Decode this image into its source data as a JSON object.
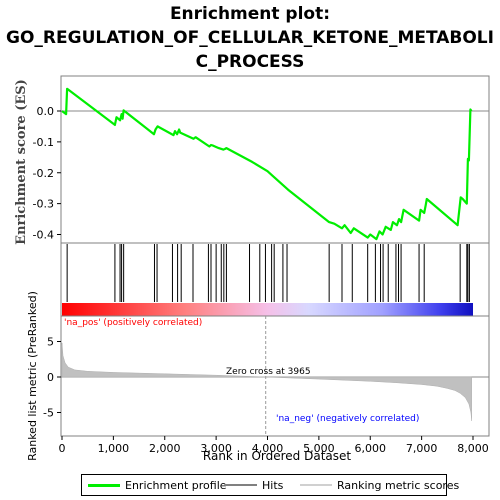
{
  "title": {
    "line1": "Enrichment plot:",
    "line2": "GO_REGULATION_OF_CELLULAR_KETONE_METABOLI",
    "line3": "C_PROCESS"
  },
  "legend": {
    "enrichment_profile": "Enrichment profile",
    "hits": "Hits",
    "ranking_metric_scores": "Ranking metric scores"
  },
  "colors": {
    "enrichment_line": "#00ee00",
    "hits": "#000000",
    "metric_fill": "#c0c0c0",
    "pos_label": "#ff0000",
    "neg_label": "#0000ff"
  },
  "chart_data": [
    {
      "type": "line",
      "name": "enrichment-score-plot",
      "ylabel": "Enrichment score (ES)",
      "xlim": [
        0,
        8200
      ],
      "ylim": [
        -0.445,
        0.095
      ],
      "yticks": [
        0.0,
        -0.1,
        -0.2,
        -0.3,
        -0.4
      ],
      "ytick_labels": [
        "0.0",
        "-0.1",
        "-0.2",
        "-0.3",
        "-0.4"
      ],
      "grid": false,
      "series": [
        {
          "x": [
            0,
            80,
            100,
            1030,
            1060,
            1130,
            1160,
            1180,
            1200,
            1790,
            1820,
            1840,
            1860,
            2170,
            2200,
            2240,
            2280,
            2300,
            2560,
            2600,
            2870,
            2900,
            2940,
            3050,
            3140,
            3170,
            3200,
            3700,
            4000,
            4100,
            4400,
            5200,
            5300,
            5450,
            5500,
            5620,
            5680,
            5950,
            6000,
            6120,
            6180,
            6240,
            6300,
            6400,
            6440,
            6520,
            6560,
            6600,
            6650,
            6950,
            6980,
            7050,
            7080,
            7100,
            7700,
            7760,
            7800,
            7880,
            7900,
            7920,
            7950,
            7970
          ],
          "values": [
            0.0,
            -0.01,
            0.072,
            -0.045,
            -0.02,
            -0.03,
            -0.01,
            -0.025,
            0.002,
            -0.075,
            -0.06,
            -0.055,
            -0.05,
            -0.078,
            -0.065,
            -0.075,
            -0.06,
            -0.07,
            -0.09,
            -0.085,
            -0.115,
            -0.11,
            -0.112,
            -0.12,
            -0.125,
            -0.123,
            -0.12,
            -0.165,
            -0.195,
            -0.21,
            -0.255,
            -0.36,
            -0.365,
            -0.38,
            -0.37,
            -0.395,
            -0.38,
            -0.41,
            -0.4,
            -0.415,
            -0.39,
            -0.4,
            -0.375,
            -0.385,
            -0.36,
            -0.37,
            -0.35,
            -0.36,
            -0.32,
            -0.355,
            -0.32,
            -0.33,
            -0.305,
            -0.285,
            -0.37,
            -0.28,
            -0.285,
            -0.3,
            -0.155,
            -0.16,
            0.005,
            0.0
          ]
        }
      ]
    },
    {
      "type": "scatter",
      "name": "hits-strip",
      "xlim": [
        0,
        8200
      ],
      "series": [
        {
          "name": "Hits",
          "x": [
            100,
            1030,
            1130,
            1160,
            1200,
            1800,
            1850,
            2150,
            2250,
            2320,
            2550,
            2850,
            2900,
            3000,
            3100,
            3150,
            3200,
            3650,
            3850,
            3960,
            4080,
            4130,
            4300,
            4380,
            5200,
            5450,
            5650,
            5950,
            6100,
            6200,
            6250,
            6350,
            6500,
            6550,
            6600,
            6950,
            7050,
            7750,
            7880,
            7900,
            7930
          ]
        }
      ]
    },
    {
      "type": "area",
      "name": "ranked-list-metric-plot",
      "xlabel": "Rank in Ordered Dataset",
      "ylabel": "Ranked list metric (PreRanked)",
      "xlim": [
        0,
        8200
      ],
      "ylim": [
        -6.5,
        6.5
      ],
      "xticks": [
        0,
        1000,
        2000,
        3000,
        4000,
        5000,
        6000,
        7000,
        8000
      ],
      "xtick_labels": [
        "0",
        "1,000",
        "2,000",
        "3,000",
        "4,000",
        "5,000",
        "6,000",
        "7,000",
        "8,000"
      ],
      "yticks": [
        5,
        0,
        -5
      ],
      "ytick_labels": [
        "5",
        "0",
        "-5"
      ],
      "x": [
        0,
        20,
        60,
        120,
        250,
        500,
        1000,
        1500,
        2000,
        2500,
        3000,
        3500,
        3965,
        4500,
        5000,
        5500,
        6000,
        6500,
        7000,
        7300,
        7500,
        7650,
        7750,
        7850,
        7920,
        7960,
        7975
      ],
      "values": [
        4.8,
        3.0,
        2.0,
        1.4,
        1.0,
        0.8,
        0.65,
        0.55,
        0.45,
        0.35,
        0.25,
        0.12,
        0.0,
        -0.15,
        -0.3,
        -0.45,
        -0.6,
        -0.8,
        -1.05,
        -1.3,
        -1.6,
        -1.9,
        -2.3,
        -2.9,
        -3.8,
        -5.0,
        -6.2
      ],
      "zero_cross_label": "Zero cross at 3965",
      "zero_cross_x": 3965,
      "pos_label": "'na_pos' (positively correlated)",
      "neg_label": "'na_neg' (negatively correlated)"
    }
  ]
}
